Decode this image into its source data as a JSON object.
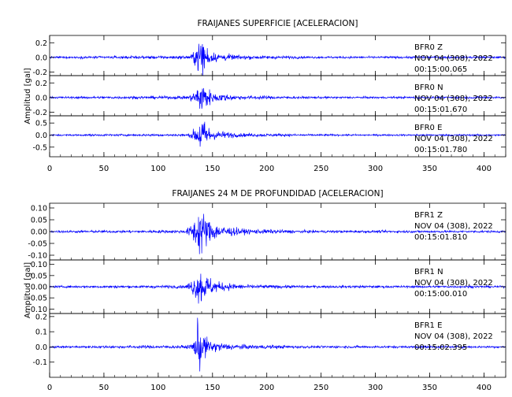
{
  "chart_data": [
    {
      "type": "line",
      "title": "FRAIJANES SUPERFICIE [ACELERACION]",
      "ylabel": "Amplitud [gal]",
      "xlabel": "",
      "xlim": [
        0,
        420
      ],
      "x_ticks": [
        0,
        50,
        100,
        150,
        200,
        250,
        300,
        350,
        400
      ],
      "line_color": "#0000ff",
      "grid": false,
      "series": [
        {
          "name": "BFR0 Z",
          "station": "BFR0",
          "component": "Z",
          "date": "NOV 04 (308), 2022",
          "time": "00:15:00.065",
          "ylim": [
            -0.25,
            0.3
          ],
          "y_ticks": [
            "0.2",
            "0.0",
            "-0.2"
          ],
          "y_tick_values": [
            0.2,
            0.0,
            -0.2
          ],
          "noise": 0.012,
          "envelope": [
            [
              0,
              0.012
            ],
            [
              128,
              0.02
            ],
            [
              135,
              0.1
            ],
            [
              139,
              0.27
            ],
            [
              142,
              0.2
            ],
            [
              150,
              0.06
            ],
            [
              175,
              0.025
            ],
            [
              240,
              0.013
            ],
            [
              420,
              0.012
            ]
          ]
        },
        {
          "name": "BFR0 N",
          "station": "BFR0",
          "component": "N",
          "date": "NOV 04 (308), 2022",
          "time": "00:15:01.670",
          "ylim": [
            -0.25,
            0.3
          ],
          "y_ticks": [
            "0.2",
            "0.0",
            "-0.2"
          ],
          "y_tick_values": [
            0.2,
            0.0,
            -0.2
          ],
          "noise": 0.012,
          "envelope": [
            [
              0,
              0.012
            ],
            [
              128,
              0.02
            ],
            [
              135,
              0.1
            ],
            [
              139,
              0.22
            ],
            [
              142,
              0.18
            ],
            [
              150,
              0.06
            ],
            [
              175,
              0.025
            ],
            [
              240,
              0.013
            ],
            [
              420,
              0.012
            ]
          ]
        },
        {
          "name": "BFR0 E",
          "station": "BFR0",
          "component": "E",
          "date": "NOV 04 (308), 2022",
          "time": "00:15:01.780",
          "ylim": [
            -0.9,
            0.8
          ],
          "y_ticks": [
            "0.5",
            "0.0",
            "-0.5"
          ],
          "y_tick_values": [
            0.5,
            0.0,
            -0.5
          ],
          "noise": 0.03,
          "envelope": [
            [
              0,
              0.03
            ],
            [
              128,
              0.05
            ],
            [
              135,
              0.3
            ],
            [
              139,
              0.75
            ],
            [
              142,
              0.55
            ],
            [
              150,
              0.18
            ],
            [
              175,
              0.07
            ],
            [
              240,
              0.035
            ],
            [
              420,
              0.03
            ]
          ]
        }
      ]
    },
    {
      "type": "line",
      "title": "FRAIJANES 24 M DE PROFUNDIDAD [ACELERACION]",
      "ylabel": "Amplitud [gal]",
      "xlabel": "",
      "xlim": [
        0,
        420
      ],
      "x_ticks": [
        0,
        50,
        100,
        150,
        200,
        250,
        300,
        350,
        400
      ],
      "line_color": "#0000ff",
      "grid": false,
      "series": [
        {
          "name": "BFR1 Z",
          "station": "BFR1",
          "component": "Z",
          "date": "NOV 04 (308), 2022",
          "time": "00:15:01.810",
          "ylim": [
            -0.12,
            0.12
          ],
          "y_ticks": [
            "0.10",
            "0.05",
            "0.00",
            "-0.05",
            "-0.10"
          ],
          "y_tick_values": [
            0.1,
            0.05,
            0.0,
            -0.05,
            -0.1
          ],
          "noise": 0.004,
          "envelope": [
            [
              0,
              0.004
            ],
            [
              125,
              0.006
            ],
            [
              130,
              0.025
            ],
            [
              137,
              0.08
            ],
            [
              139,
              0.11
            ],
            [
              143,
              0.06
            ],
            [
              155,
              0.025
            ],
            [
              180,
              0.01
            ],
            [
              240,
              0.005
            ],
            [
              420,
              0.004
            ]
          ]
        },
        {
          "name": "BFR1 N",
          "station": "BFR1",
          "component": "N",
          "date": "NOV 04 (308), 2022",
          "time": "00:15:00.010",
          "ylim": [
            -0.12,
            0.12
          ],
          "y_ticks": [
            "0.10",
            "0.05",
            "0.00",
            "-0.05",
            "-0.10"
          ],
          "y_tick_values": [
            0.1,
            0.05,
            0.0,
            -0.05,
            -0.1
          ],
          "noise": 0.004,
          "envelope": [
            [
              0,
              0.004
            ],
            [
              125,
              0.006
            ],
            [
              130,
              0.025
            ],
            [
              137,
              0.06
            ],
            [
              139,
              0.085
            ],
            [
              143,
              0.05
            ],
            [
              155,
              0.02
            ],
            [
              180,
              0.008
            ],
            [
              240,
              0.005
            ],
            [
              420,
              0.004
            ]
          ]
        },
        {
          "name": "BFR1 E",
          "station": "BFR1",
          "component": "E",
          "date": "NOV 04 (308), 2022",
          "time": "00:15:02.395",
          "ylim": [
            -0.2,
            0.22
          ],
          "y_ticks": [
            "0.2",
            "0.1",
            "0.0",
            "-0.1"
          ],
          "y_tick_values": [
            0.2,
            0.1,
            0.0,
            -0.1
          ],
          "noise": 0.006,
          "envelope": [
            [
              0,
              0.006
            ],
            [
              128,
              0.01
            ],
            [
              134,
              0.05
            ],
            [
              137,
              0.18
            ],
            [
              140,
              0.09
            ],
            [
              148,
              0.035
            ],
            [
              170,
              0.015
            ],
            [
              240,
              0.007
            ],
            [
              420,
              0.006
            ]
          ]
        }
      ]
    }
  ]
}
